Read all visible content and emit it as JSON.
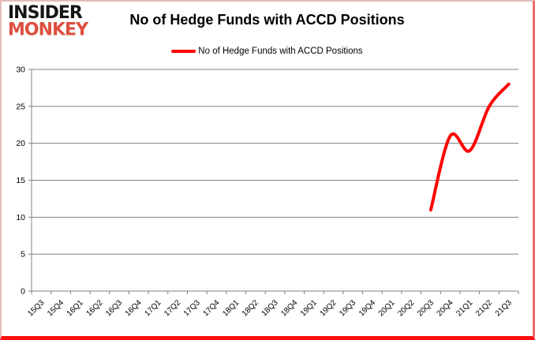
{
  "logo": {
    "line1": "INSIDER",
    "line2": "MONKEY",
    "accent_color": "#dd4f3e"
  },
  "header": {
    "title": "No of Hedge Funds with ACCD Positions"
  },
  "legend": {
    "label": "No of Hedge Funds with ACCD Positions"
  },
  "chart_data": {
    "type": "line",
    "title": "No of Hedge Funds with ACCD Positions",
    "categories": [
      "15Q3",
      "15Q4",
      "16Q1",
      "16Q2",
      "16Q3",
      "16Q4",
      "17Q1",
      "17Q2",
      "17Q3",
      "17Q4",
      "18Q1",
      "18Q2",
      "18Q3",
      "18Q4",
      "19Q1",
      "19Q2",
      "19Q3",
      "19Q4",
      "20Q1",
      "20Q2",
      "20Q3",
      "20Q4",
      "21Q1",
      "21Q2",
      "21Q3"
    ],
    "series": [
      {
        "name": "No of Hedge Funds with ACCD Positions",
        "color": "#ff0000",
        "values": [
          null,
          null,
          null,
          null,
          null,
          null,
          null,
          null,
          null,
          null,
          null,
          null,
          null,
          null,
          null,
          null,
          null,
          null,
          null,
          null,
          11,
          21,
          19,
          25,
          28
        ]
      }
    ],
    "ylim": [
      0,
      30
    ],
    "yticks": [
      0,
      5,
      10,
      15,
      20,
      25,
      30
    ],
    "xlabel": "",
    "ylabel": "",
    "grid": true,
    "legend_position": "top",
    "gridline_color": "#808080",
    "axis_text_color": "#000000",
    "plot_background": "#ffffff"
  }
}
